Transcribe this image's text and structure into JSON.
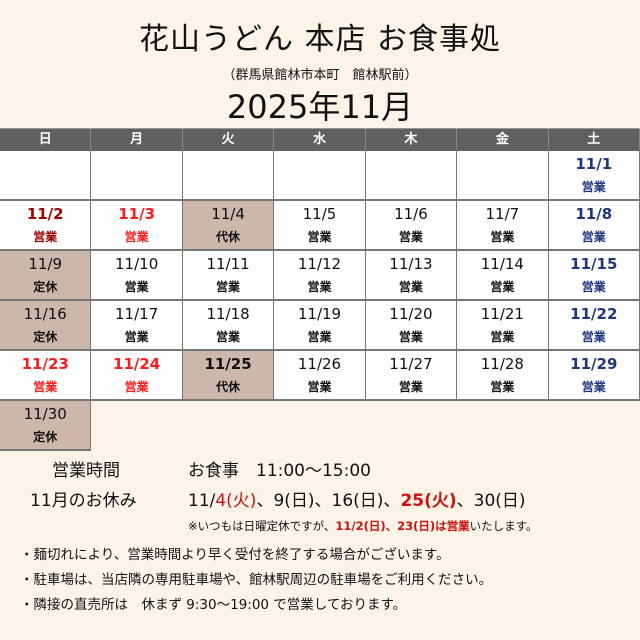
{
  "title": "花山うどん 本店 お食事処",
  "subtitle": "（群馬県館林市本町　館林駅前）",
  "year_month": "2025年11月",
  "weekdays": [
    "日",
    "月",
    "火",
    "水",
    "木",
    "金",
    "土"
  ],
  "cells": [
    {
      "date": "",
      "status": ""
    },
    {
      "date": "",
      "status": ""
    },
    {
      "date": "",
      "status": ""
    },
    {
      "date": "",
      "status": ""
    },
    {
      "date": "",
      "status": ""
    },
    {
      "date": "",
      "status": ""
    },
    {
      "date": "11/1",
      "status": "営業",
      "type": "sat"
    },
    {
      "date": "11/2",
      "status": "営業",
      "type": "sun"
    },
    {
      "date": "11/3",
      "status": "営業",
      "type": "hol"
    },
    {
      "date": "11/4",
      "status": "代休",
      "type": "off"
    },
    {
      "date": "11/5",
      "status": "営業"
    },
    {
      "date": "11/6",
      "status": "営業"
    },
    {
      "date": "11/7",
      "status": "営業"
    },
    {
      "date": "11/8",
      "status": "営業",
      "type": "sat"
    },
    {
      "date": "11/9",
      "status": "定休",
      "type": "off"
    },
    {
      "date": "11/10",
      "status": "営業"
    },
    {
      "date": "11/11",
      "status": "営業"
    },
    {
      "date": "11/12",
      "status": "営業"
    },
    {
      "date": "11/13",
      "status": "営業"
    },
    {
      "date": "11/14",
      "status": "営業"
    },
    {
      "date": "11/15",
      "status": "営業",
      "type": "sat"
    },
    {
      "date": "11/16",
      "status": "定休",
      "type": "off"
    },
    {
      "date": "11/17",
      "status": "営業"
    },
    {
      "date": "11/18",
      "status": "営業"
    },
    {
      "date": "11/19",
      "status": "営業"
    },
    {
      "date": "11/20",
      "status": "営業"
    },
    {
      "date": "11/21",
      "status": "営業"
    },
    {
      "date": "11/22",
      "status": "営業",
      "type": "sat"
    },
    {
      "date": "11/23",
      "status": "営業",
      "type": "hol"
    },
    {
      "date": "11/24",
      "status": "営業",
      "type": "hol"
    },
    {
      "date": "11/25",
      "status": "代休",
      "type": "off"
    },
    {
      "date": "11/26",
      "status": "営業"
    },
    {
      "date": "11/27",
      "status": "営業"
    },
    {
      "date": "11/28",
      "status": "営業"
    },
    {
      "date": "11/29",
      "status": "営業",
      "type": "sat"
    },
    {
      "date": "11/30",
      "status": "定休",
      "type": "off"
    }
  ],
  "hours": {
    "label": "営業時間",
    "value": "お食事　11:00～15:00"
  },
  "holidays": {
    "label": "11月のお休み",
    "p1": "11/",
    "p2": "4(火)",
    "p3": "、9(日)、16(日)、",
    "p4": "25(火)",
    "p5": "、30(日)"
  },
  "note": {
    "a": "※いつもは日曜定休ですが、",
    "b": "11/2(日)、23(日)は営業",
    "c": "いたします。"
  },
  "bullets": [
    "・麺切れにより、営業時間より早く受付を終了する場合がございます。",
    "・駐車場は、当店隣の専用駐車場や、館林駅周辺の駐車場をご利用ください。",
    "・隣接の直売所は　休まず 9:30～19:00 で営業しております。"
  ]
}
